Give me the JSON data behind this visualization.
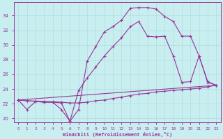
{
  "xlabel": "Windchill (Refroidissement éolien,°C)",
  "background_color": "#c8eef0",
  "line_color": "#993399",
  "grid_color": "#b0dde0",
  "xlim": [
    -0.5,
    23.5
  ],
  "ylim": [
    19.5,
    35.8
  ],
  "xticks": [
    0,
    1,
    2,
    3,
    4,
    5,
    6,
    7,
    8,
    9,
    10,
    11,
    12,
    13,
    14,
    15,
    16,
    17,
    18,
    19,
    20,
    21,
    22,
    23
  ],
  "yticks": [
    20,
    22,
    24,
    26,
    28,
    30,
    32,
    34
  ],
  "line1_x": [
    0,
    1,
    2,
    3,
    4,
    5,
    6,
    7,
    8,
    9,
    10,
    11,
    12,
    13,
    14,
    15,
    16,
    17,
    18,
    19,
    20,
    21,
    22,
    23
  ],
  "line1_y": [
    22.5,
    21.2,
    22.3,
    22.2,
    22.2,
    21.2,
    19.6,
    21.2,
    27.8,
    29.8,
    31.8,
    32.5,
    33.4,
    35.0,
    35.1,
    35.1,
    34.9,
    33.9,
    33.2,
    31.2,
    31.2,
    28.5,
    25.0,
    24.5
  ],
  "line2_x": [
    0,
    1,
    2,
    3,
    4,
    5,
    6,
    7,
    8,
    9,
    10,
    11,
    12,
    13,
    14,
    15,
    16,
    17,
    18,
    19,
    20,
    21,
    22,
    23
  ],
  "line2_y": [
    22.5,
    22.4,
    22.35,
    22.3,
    22.25,
    22.2,
    22.1,
    22.1,
    22.2,
    22.4,
    22.5,
    22.7,
    22.9,
    23.1,
    23.3,
    23.4,
    23.6,
    23.7,
    23.8,
    23.9,
    24.0,
    24.1,
    24.3,
    24.5
  ],
  "line3_x": [
    0,
    1,
    2,
    3,
    4,
    5,
    6,
    7,
    8,
    9,
    10,
    11,
    12,
    13,
    14,
    15,
    16,
    17,
    18,
    19,
    20,
    21,
    22,
    23
  ],
  "line3_y": [
    22.5,
    22.4,
    22.3,
    22.2,
    22.2,
    22.1,
    19.6,
    23.8,
    25.5,
    27.0,
    28.5,
    29.8,
    31.0,
    32.5,
    33.2,
    31.2,
    31.1,
    31.2,
    28.5,
    24.9,
    25.0,
    28.5,
    24.9,
    24.5
  ],
  "line4_x": [
    0,
    23
  ],
  "line4_y": [
    22.5,
    24.5
  ]
}
